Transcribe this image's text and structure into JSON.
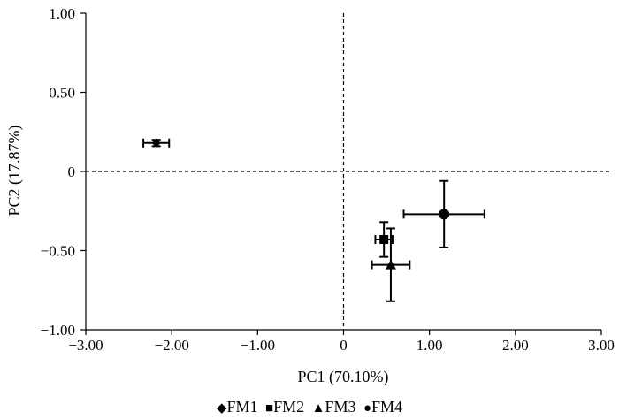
{
  "chart_data": {
    "type": "scatter",
    "xlabel": "PC1 (70.10%)",
    "ylabel": "PC2 (17.87%)",
    "xlim": [
      -3,
      3
    ],
    "ylim": [
      -1,
      1
    ],
    "x_ticks": [
      -3,
      -2,
      -1,
      0,
      1,
      2,
      3
    ],
    "x_tick_labels": [
      "−3.00",
      "−2.00",
      "−1.00",
      "0",
      "1.00",
      "2.00",
      "3.00"
    ],
    "y_ticks": [
      1,
      0.5,
      0,
      -0.5,
      -1
    ],
    "y_tick_labels": [
      "1.00",
      "0.50",
      "0",
      "−0.50",
      "−1.00"
    ],
    "grid": false,
    "reference_lines": {
      "x": 0,
      "y": 0,
      "style": "dashed"
    },
    "legend_position": "bottom",
    "series": [
      {
        "name": "FM1",
        "symbol": "◆",
        "marker": "diamond",
        "x": -2.18,
        "y": 0.18,
        "x_err": 0.15,
        "y_err": 0.02
      },
      {
        "name": "FM2",
        "symbol": "■",
        "marker": "square",
        "x": 0.47,
        "y": -0.43,
        "x_err": 0.1,
        "y_err": 0.11
      },
      {
        "name": "FM3",
        "symbol": "▲",
        "marker": "triangle",
        "x": 0.55,
        "y": -0.59,
        "x_err": 0.22,
        "y_err": 0.23
      },
      {
        "name": "FM4",
        "symbol": "●",
        "marker": "circle",
        "x": 1.17,
        "y": -0.27,
        "x_err": 0.47,
        "y_err": 0.21
      }
    ]
  },
  "colors": {
    "ink": "#000000"
  }
}
